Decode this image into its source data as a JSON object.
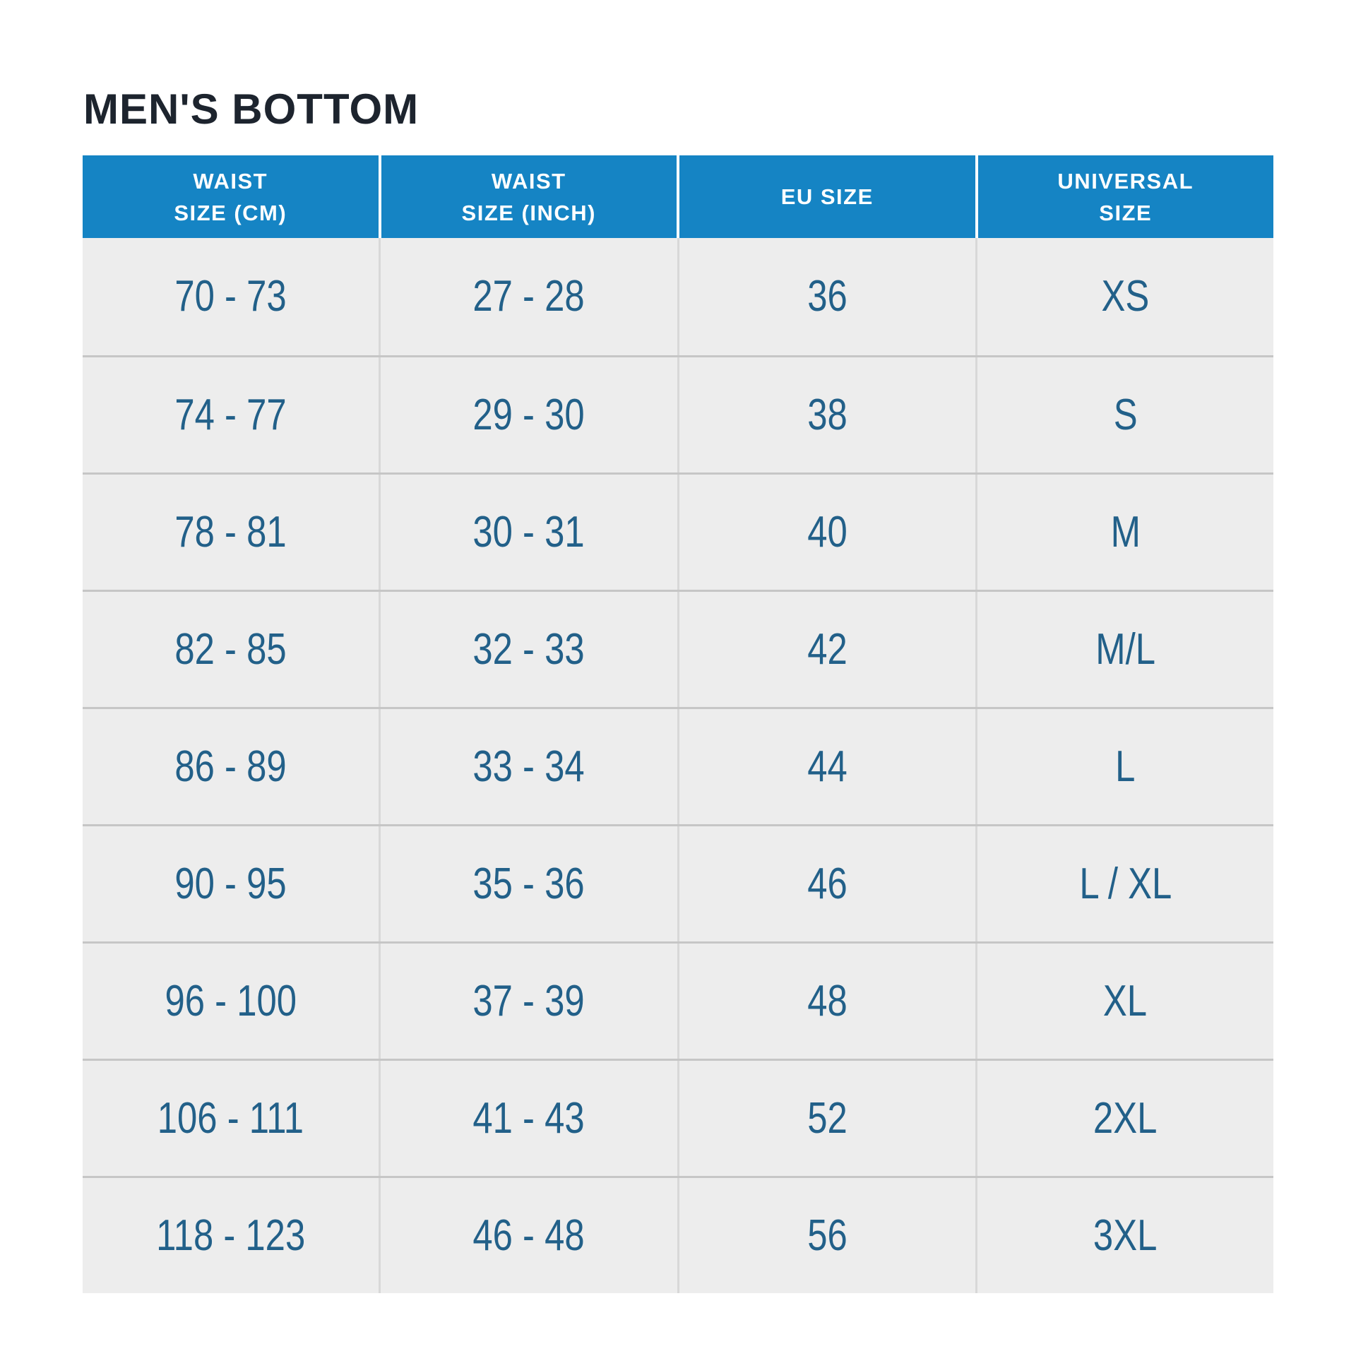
{
  "title": "MEN'S BOTTOM",
  "colors": {
    "header_bg": "#1584c4",
    "header_text": "#ffffff",
    "cell_text": "#226089",
    "title_text": "#1d242e",
    "row_bg": "#ededed",
    "line_h": "#c6c6c6",
    "line_v": "#d8d8d8",
    "page_bg": "#ffffff"
  },
  "table": {
    "columns": [
      {
        "id": "waist_cm",
        "label": "WAIST\nSIZE (CM)"
      },
      {
        "id": "waist_inch",
        "label": "WAIST\nSIZE (INCH)"
      },
      {
        "id": "eu",
        "label": "EU SIZE"
      },
      {
        "id": "universal",
        "label": "UNIVERSAL\nSIZE"
      }
    ],
    "rows": [
      {
        "waist_cm": "70 - 73",
        "waist_inch": "27 - 28",
        "eu": "36",
        "universal": "XS"
      },
      {
        "waist_cm": "74 - 77",
        "waist_inch": "29 - 30",
        "eu": "38",
        "universal": "S"
      },
      {
        "waist_cm": "78 - 81",
        "waist_inch": "30 - 31",
        "eu": "40",
        "universal": "M"
      },
      {
        "waist_cm": "82 - 85",
        "waist_inch": "32 - 33",
        "eu": "42",
        "universal": "M/L"
      },
      {
        "waist_cm": "86 - 89",
        "waist_inch": "33 - 34",
        "eu": "44",
        "universal": "L"
      },
      {
        "waist_cm": "90 - 95",
        "waist_inch": "35 - 36",
        "eu": "46",
        "universal": "L / XL"
      },
      {
        "waist_cm": "96 - 100",
        "waist_inch": "37 - 39",
        "eu": "48",
        "universal": "XL"
      },
      {
        "waist_cm": "106 - 111",
        "waist_inch": "41 - 43",
        "eu": "52",
        "universal": "2XL"
      },
      {
        "waist_cm": "118 - 123",
        "waist_inch": "46 - 48",
        "eu": "56",
        "universal": "3XL"
      }
    ]
  },
  "chart_data": {
    "type": "table",
    "title": "MEN'S BOTTOM",
    "columns": [
      "WAIST SIZE (CM)",
      "WAIST SIZE (INCH)",
      "EU SIZE",
      "UNIVERSAL SIZE"
    ],
    "rows": [
      [
        "70 - 73",
        "27 - 28",
        "36",
        "XS"
      ],
      [
        "74 - 77",
        "29 - 30",
        "38",
        "S"
      ],
      [
        "78 - 81",
        "30 - 31",
        "40",
        "M"
      ],
      [
        "82 - 85",
        "32 - 33",
        "42",
        "M/L"
      ],
      [
        "86 - 89",
        "33 - 34",
        "44",
        "L"
      ],
      [
        "90 - 95",
        "35 - 36",
        "46",
        "L / XL"
      ],
      [
        "96 - 100",
        "37 - 39",
        "48",
        "XL"
      ],
      [
        "106 - 111",
        "41 - 43",
        "52",
        "2XL"
      ],
      [
        "118 - 123",
        "46 - 48",
        "56",
        "3XL"
      ]
    ]
  }
}
